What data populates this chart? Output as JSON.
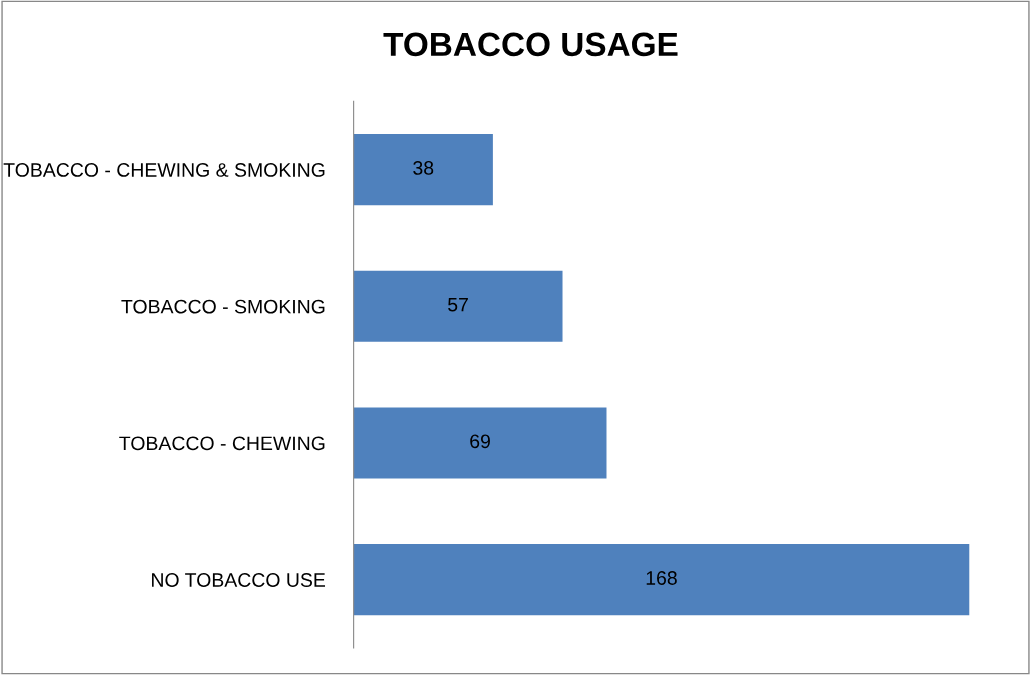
{
  "chart_data": {
    "type": "bar",
    "title": "TOBACCO USAGE",
    "orientation": "horizontal",
    "categories": [
      "TOBACCO - CHEWING & SMOKING",
      "TOBACCO - SMOKING",
      "TOBACCO - CHEWING",
      "NO TOBACCO USE"
    ],
    "values": [
      38,
      57,
      69,
      168
    ],
    "color": "#4f81bd",
    "data_labels": true,
    "grid": false,
    "legend": false
  }
}
